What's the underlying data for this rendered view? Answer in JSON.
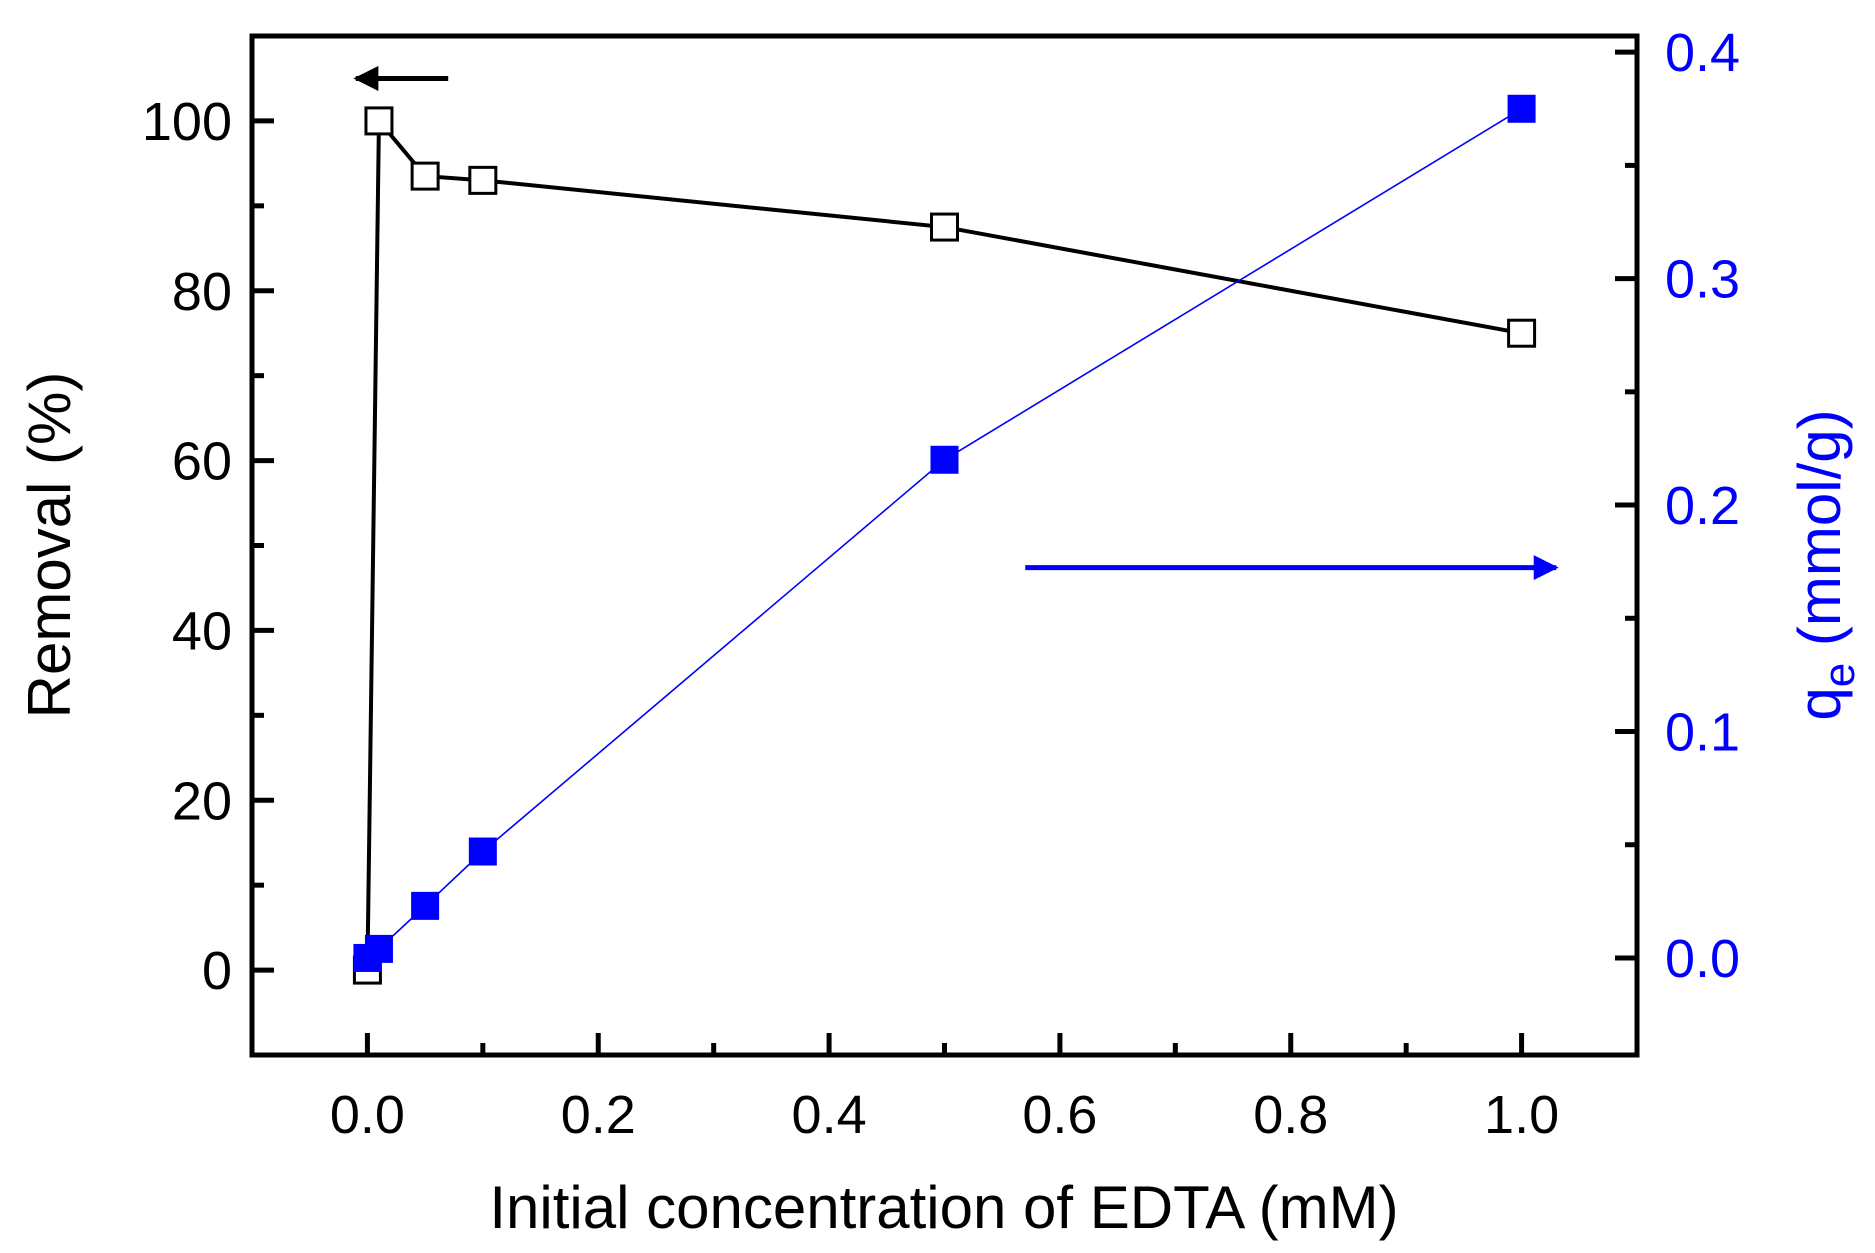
{
  "chart_data": {
    "type": "line",
    "xlabel": "Initial concentration of EDTA (mM)",
    "ylabel": "Removal (%)",
    "y2label": {
      "main": "q",
      "sub": "e",
      "rest": " (mmol/g)"
    },
    "xlim": [
      -0.1,
      1.1
    ],
    "ylim": [
      -10,
      110
    ],
    "y2lim": [
      -0.04286,
      0.40714
    ],
    "xticks": [
      0.0,
      0.2,
      0.4,
      0.6,
      0.8,
      1.0
    ],
    "xtick_labels": [
      "0.0",
      "0.2",
      "0.4",
      "0.6",
      "0.8",
      "1.0"
    ],
    "yticks": [
      0,
      20,
      40,
      60,
      80,
      100
    ],
    "ytick_labels": [
      "0",
      "20",
      "40",
      "60",
      "80",
      "100"
    ],
    "y2ticks": [
      0.0,
      0.1,
      0.2,
      0.3,
      0.4
    ],
    "y2tick_labels": [
      "0.0",
      "0.1",
      "0.2",
      "0.3",
      "0.4"
    ],
    "series": [
      {
        "name": "Removal (%)",
        "axis": "left",
        "marker": "open-square",
        "color": "#000000",
        "x": [
          0.0,
          0.01,
          0.05,
          0.1,
          0.5,
          1.0
        ],
        "y": [
          0,
          100,
          93.5,
          93,
          87.5,
          75
        ]
      },
      {
        "name": "qe (mmol/g)",
        "axis": "right",
        "marker": "filled-square",
        "color": "#0000ff",
        "x": [
          0.0,
          0.01,
          0.05,
          0.1,
          0.5,
          1.0
        ],
        "y": [
          0.0,
          0.004,
          0.023,
          0.047,
          0.22,
          0.375
        ]
      }
    ],
    "annotations": [
      {
        "type": "arrow",
        "direction": "left",
        "color": "#000000",
        "points_to": "left axis",
        "x": [
          0.07,
          -0.01
        ],
        "y": 105
      },
      {
        "type": "arrow",
        "direction": "right",
        "color": "#0000ff",
        "points_to": "right axis",
        "x": [
          0.57,
          1.03
        ],
        "y": 47.4
      }
    ]
  }
}
